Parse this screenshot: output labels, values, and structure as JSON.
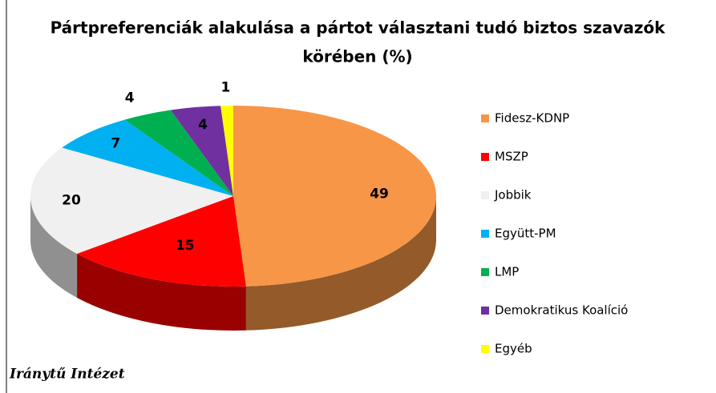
{
  "chart_data": {
    "type": "pie3d",
    "title": "Pártpreferenciák alakulása a pártot választani tudó biztos szavazók körében (%)",
    "title_lines": [
      "Pártpreferenciák alakulása a pártot választani tudó biztos szavazók",
      "körében (%)"
    ],
    "categories": [
      "Fidesz-KDNP",
      "MSZP",
      "Jobbik",
      "Együtt-PM",
      "LMP",
      "Demokratikus Koalíció",
      "Egyéb"
    ],
    "values": [
      49,
      15,
      20,
      7,
      4,
      4,
      1
    ],
    "colors": [
      "#f79646",
      "#ff0000",
      "#f0f0f0",
      "#00b0f0",
      "#00b050",
      "#7030a0",
      "#ffff00"
    ],
    "legend": "right",
    "source": "Iránytű Intézet"
  }
}
